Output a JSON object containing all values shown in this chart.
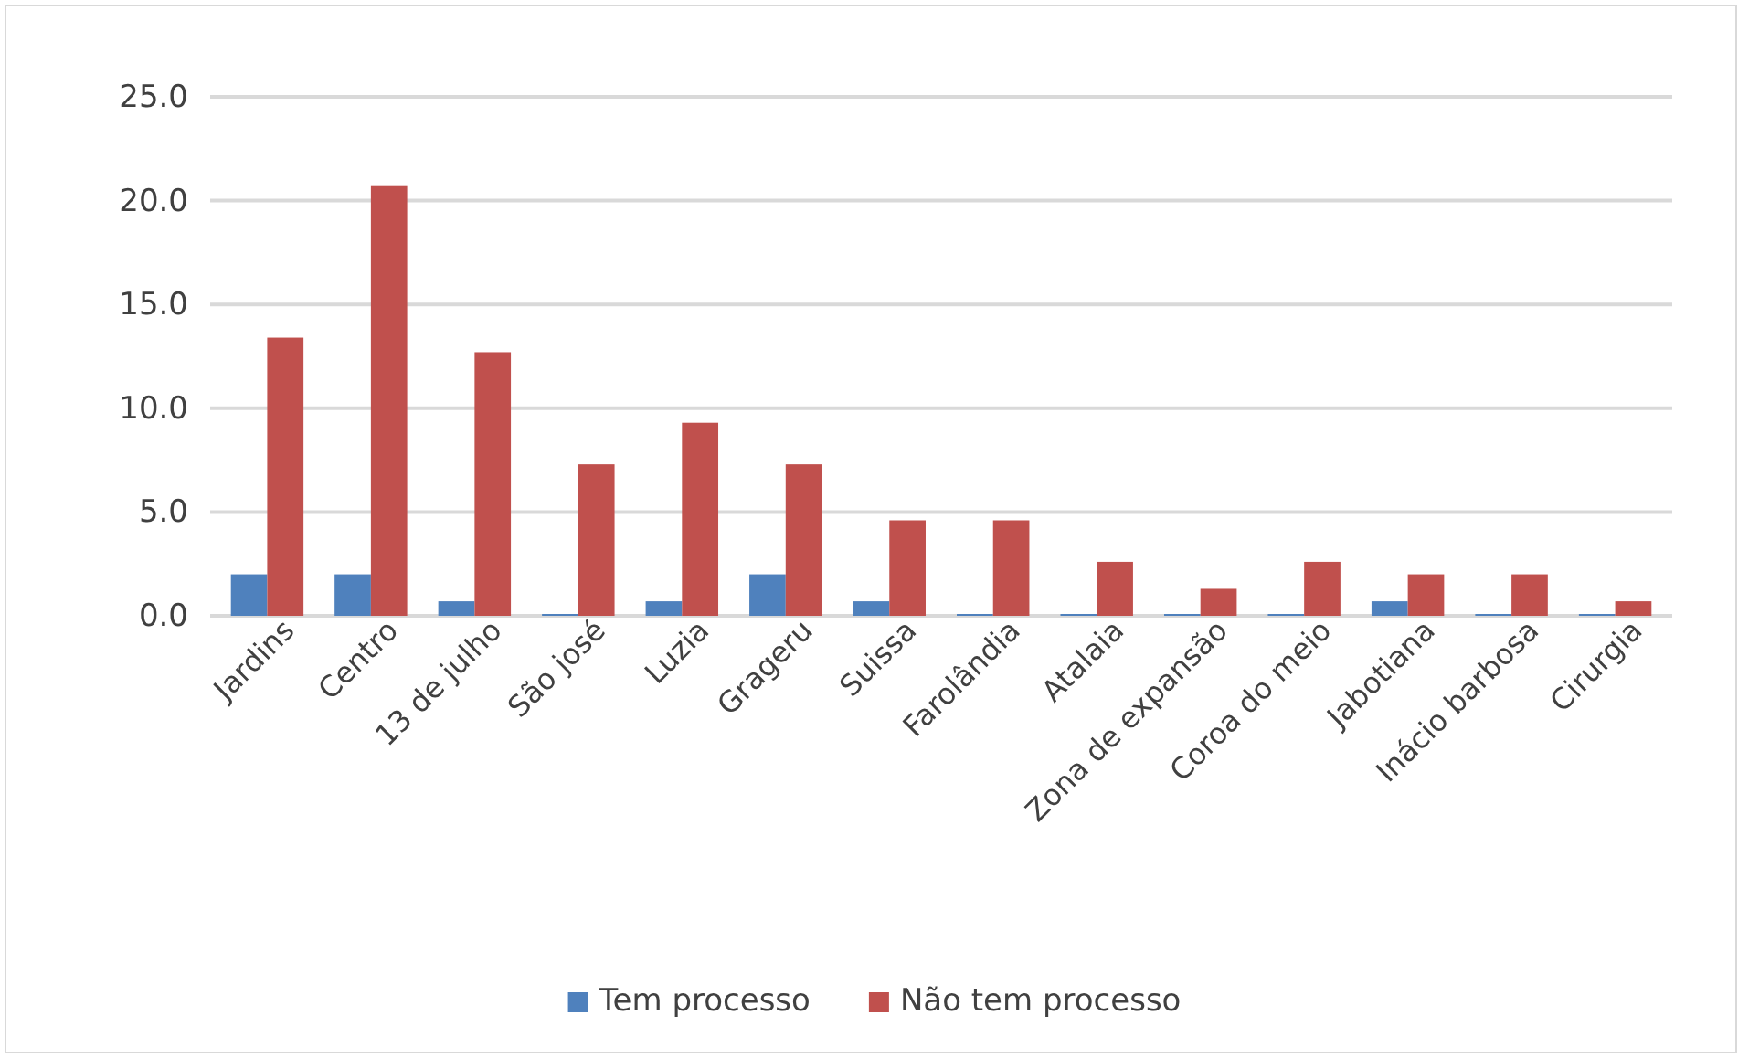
{
  "chart_data": {
    "type": "bar",
    "categories": [
      "Jardins",
      "Centro",
      "13 de julho",
      "São josé",
      "Luzia",
      "Grageru",
      "Suissa",
      "Farolândia",
      "Atalaia",
      "Zona de expansão",
      "Coroa do meio",
      "Jabotiana",
      "Inácio barbosa",
      "Cirurgia"
    ],
    "series": [
      {
        "name": "Tem processo",
        "color": "#4f81bd",
        "values": [
          2.0,
          2.0,
          0.7,
          0,
          0.7,
          2.0,
          0.7,
          0,
          0,
          0,
          0,
          0.7,
          0,
          0
        ]
      },
      {
        "name": "Não tem processo",
        "color": "#c0504d",
        "values": [
          13.4,
          20.7,
          12.7,
          7.3,
          9.3,
          7.3,
          4.6,
          4.6,
          2.6,
          1.3,
          2.6,
          2.0,
          2.0,
          0.7
        ]
      }
    ],
    "ylim": [
      0,
      25
    ],
    "yticks": [
      {
        "value": 0,
        "label": "0.0"
      },
      {
        "value": 5,
        "label": "5.0"
      },
      {
        "value": 10,
        "label": "10.0"
      },
      {
        "value": 15,
        "label": "15.0"
      },
      {
        "value": 20,
        "label": "20.0"
      },
      {
        "value": 25,
        "label": "25.0"
      }
    ],
    "grid": "y",
    "legend": "bottom"
  }
}
